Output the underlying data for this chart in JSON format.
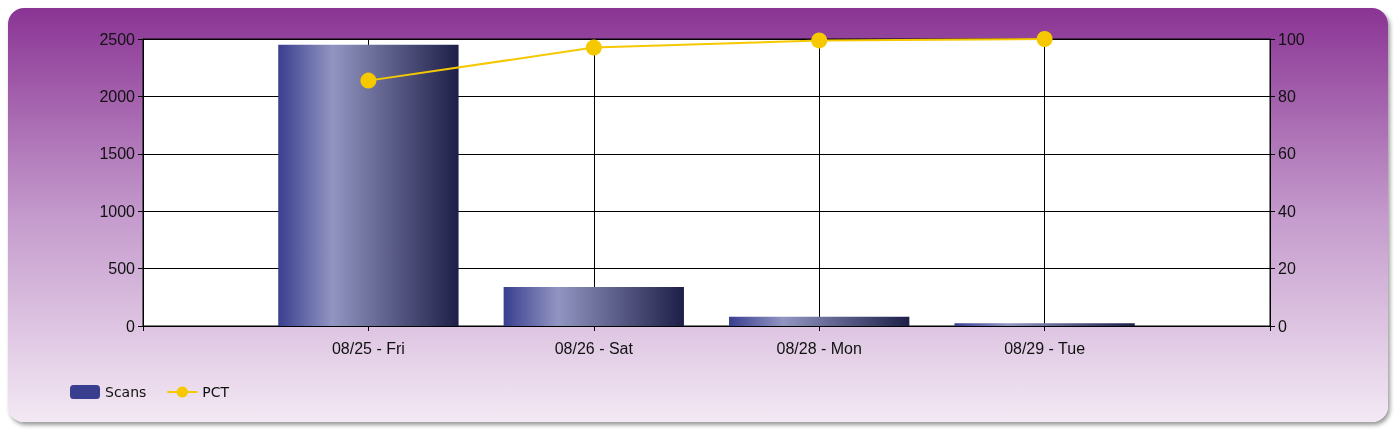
{
  "chart_data": {
    "type": "bar",
    "categories": [
      "08/25 - Fri",
      "08/26 - Sat",
      "08/28 - Mon",
      "08/29 - Tue"
    ],
    "series": [
      {
        "name": "Scans",
        "color": "#393e8f",
        "values": [
          2450,
          340,
          80,
          25
        ]
      },
      {
        "name": "PCT",
        "type": "line",
        "axis": "y2",
        "color": "#f5c800",
        "values": [
          85.5,
          97,
          99.5,
          100
        ]
      }
    ],
    "ylim": [
      0,
      2500
    ],
    "yticks": [
      0,
      500,
      1000,
      1500,
      2000,
      2500
    ],
    "y2lim": [
      0,
      100
    ],
    "y2ticks": [
      0,
      20,
      40,
      60,
      80,
      100
    ],
    "grid": true,
    "legend": "bottom left",
    "marker": "circle"
  }
}
